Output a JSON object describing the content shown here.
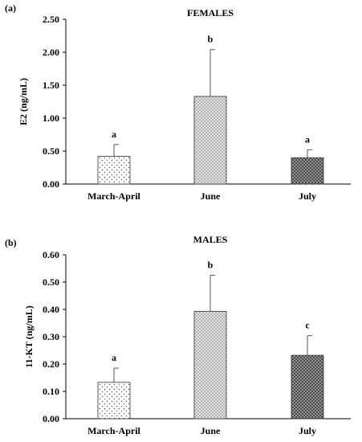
{
  "chart_data": [
    {
      "type": "bar",
      "panel_label": "(a)",
      "title": "FEMALES",
      "xlabel": "",
      "ylabel": "E2 (ng/mL)",
      "categories": [
        "March-April",
        "June",
        "July"
      ],
      "values": [
        0.42,
        1.33,
        0.4
      ],
      "errors": [
        0.18,
        0.71,
        0.12
      ],
      "significance_letters": [
        "a",
        "b",
        "a"
      ],
      "ylim": [
        0,
        2.5
      ],
      "yticks": [
        "0.00",
        "0.50",
        "1.00",
        "1.50",
        "2.00",
        "2.50"
      ],
      "grid": false,
      "legend": "none"
    },
    {
      "type": "bar",
      "panel_label": "(b)",
      "title": "MALES",
      "xlabel": "",
      "ylabel": "11-KT (ng/mL)",
      "categories": [
        "March-April",
        "June",
        "July"
      ],
      "values": [
        0.133,
        0.393,
        0.232
      ],
      "errors": [
        0.052,
        0.132,
        0.072
      ],
      "significance_letters": [
        "a",
        "b",
        "c"
      ],
      "ylim": [
        0,
        0.6
      ],
      "yticks": [
        "0.00",
        "0.10",
        "0.20",
        "0.30",
        "0.40",
        "0.50",
        "0.60"
      ],
      "grid": false,
      "legend": "none"
    }
  ]
}
